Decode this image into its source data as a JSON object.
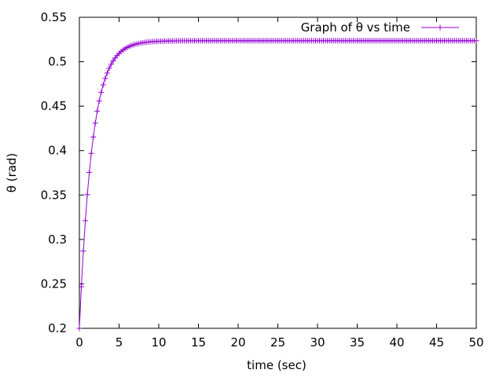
{
  "chart_data": {
    "type": "line",
    "title": "",
    "xlabel": "time (sec)",
    "ylabel": "θ (rad)",
    "xlim": [
      0,
      50
    ],
    "ylim": [
      0.2,
      0.55
    ],
    "x_ticks": [
      0,
      5,
      10,
      15,
      20,
      25,
      30,
      35,
      40,
      45,
      50
    ],
    "y_ticks": [
      0.2,
      0.25,
      0.3,
      0.35,
      0.4,
      0.45,
      0.5,
      0.55
    ],
    "x_tick_labels": [
      "0",
      "5",
      "10",
      "15",
      "20",
      "25",
      "30",
      "35",
      "40",
      "45",
      "50"
    ],
    "y_tick_labels": [
      "0.2",
      "0.25",
      "0.3",
      "0.35",
      "0.4",
      "0.45",
      "0.5",
      "0.55"
    ],
    "grid": false,
    "legend_position": "top-right",
    "series": [
      {
        "name": "Graph of θ vs time",
        "color": "#9400d3",
        "marker": "plus",
        "x_start": 0,
        "x_end": 50,
        "x_step": 0.25,
        "model": {
          "form": "exponential-approach",
          "y0": 0.2,
          "y_final": 0.5236,
          "time_constant": 1.6
        }
      }
    ]
  }
}
